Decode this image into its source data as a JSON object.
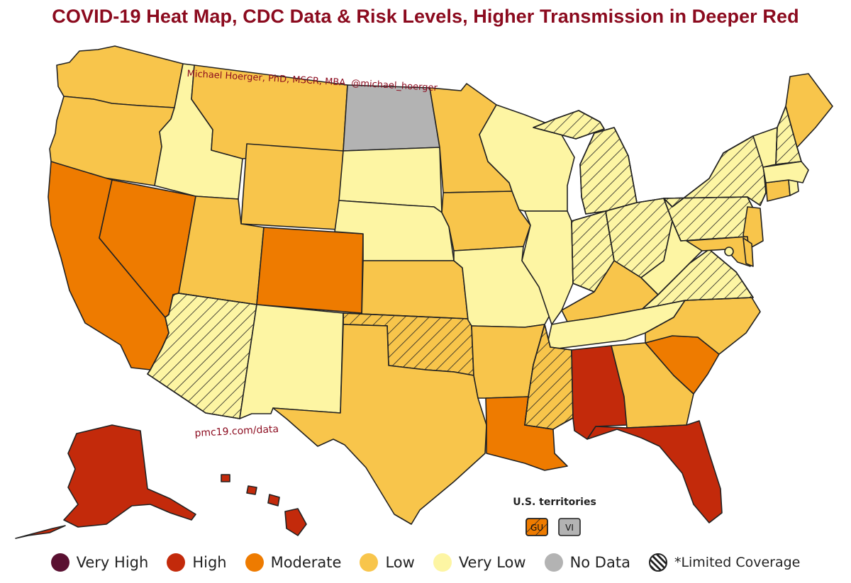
{
  "title": "COVID-19 Heat Map, CDC Data & Risk Levels, Higher Transmission in Deeper Red",
  "credit": "Michael Hoerger, PhD, MSCR, MBA  @michael_hoerger",
  "source_url": "pmc19.com/data",
  "colors": {
    "very_high": "#5a1031",
    "high": "#c32a0b",
    "moderate": "#ee7b00",
    "low": "#f8c54b",
    "very_low": "#fdf5a3",
    "no_data": "#b3b3b3",
    "title": "#8b0a1e"
  },
  "legend": [
    {
      "label": "Very High",
      "level": "very_high"
    },
    {
      "label": "High",
      "level": "high"
    },
    {
      "label": "Moderate",
      "level": "moderate"
    },
    {
      "label": "Low",
      "level": "low"
    },
    {
      "label": "Very Low",
      "level": "very_low"
    },
    {
      "label": "No Data",
      "level": "no_data"
    },
    {
      "label": "*Limited Coverage",
      "level": "limited"
    }
  ],
  "territories": {
    "title": "U.S. territories",
    "items": [
      {
        "code": "GU",
        "level": "moderate",
        "limited": true
      },
      {
        "code": "VI",
        "level": "no_data",
        "limited": false
      }
    ]
  },
  "states": [
    {
      "abbr": "WA",
      "level": "low",
      "limited": false
    },
    {
      "abbr": "OR",
      "level": "low",
      "limited": false
    },
    {
      "abbr": "CA",
      "level": "moderate",
      "limited": false
    },
    {
      "abbr": "NV",
      "level": "moderate",
      "limited": false
    },
    {
      "abbr": "ID",
      "level": "very_low",
      "limited": false
    },
    {
      "abbr": "MT",
      "level": "low",
      "limited": false
    },
    {
      "abbr": "WY",
      "level": "low",
      "limited": false
    },
    {
      "abbr": "UT",
      "level": "low",
      "limited": false
    },
    {
      "abbr": "AZ",
      "level": "very_low",
      "limited": true
    },
    {
      "abbr": "CO",
      "level": "moderate",
      "limited": false
    },
    {
      "abbr": "NM",
      "level": "very_low",
      "limited": false
    },
    {
      "abbr": "ND",
      "level": "no_data",
      "limited": false
    },
    {
      "abbr": "SD",
      "level": "very_low",
      "limited": false
    },
    {
      "abbr": "NE",
      "level": "very_low",
      "limited": false
    },
    {
      "abbr": "KS",
      "level": "low",
      "limited": false
    },
    {
      "abbr": "OK",
      "level": "low",
      "limited": true
    },
    {
      "abbr": "TX",
      "level": "low",
      "limited": false
    },
    {
      "abbr": "MN",
      "level": "low",
      "limited": false
    },
    {
      "abbr": "IA",
      "level": "low",
      "limited": false
    },
    {
      "abbr": "MO",
      "level": "very_low",
      "limited": false
    },
    {
      "abbr": "AR",
      "level": "low",
      "limited": false
    },
    {
      "abbr": "LA",
      "level": "moderate",
      "limited": false
    },
    {
      "abbr": "WI",
      "level": "very_low",
      "limited": false
    },
    {
      "abbr": "IL",
      "level": "very_low",
      "limited": false
    },
    {
      "abbr": "MI",
      "level": "very_low",
      "limited": true
    },
    {
      "abbr": "IN",
      "level": "very_low",
      "limited": true
    },
    {
      "abbr": "OH",
      "level": "very_low",
      "limited": true
    },
    {
      "abbr": "KY",
      "level": "low",
      "limited": false
    },
    {
      "abbr": "TN",
      "level": "very_low",
      "limited": false
    },
    {
      "abbr": "MS",
      "level": "low",
      "limited": true
    },
    {
      "abbr": "AL",
      "level": "high",
      "limited": false
    },
    {
      "abbr": "GA",
      "level": "low",
      "limited": false
    },
    {
      "abbr": "FL",
      "level": "high",
      "limited": false
    },
    {
      "abbr": "SC",
      "level": "moderate",
      "limited": false
    },
    {
      "abbr": "NC",
      "level": "low",
      "limited": false
    },
    {
      "abbr": "VA",
      "level": "very_low",
      "limited": true
    },
    {
      "abbr": "WV",
      "level": "very_low",
      "limited": false
    },
    {
      "abbr": "PA",
      "level": "very_low",
      "limited": true
    },
    {
      "abbr": "NY",
      "level": "very_low",
      "limited": true
    },
    {
      "abbr": "NJ",
      "level": "low",
      "limited": false
    },
    {
      "abbr": "DE",
      "level": "low",
      "limited": false
    },
    {
      "abbr": "MD",
      "level": "low",
      "limited": false
    },
    {
      "abbr": "DC",
      "level": "very_low",
      "limited": false
    },
    {
      "abbr": "CT",
      "level": "low",
      "limited": false
    },
    {
      "abbr": "RI",
      "level": "very_low",
      "limited": false
    },
    {
      "abbr": "MA",
      "level": "very_low",
      "limited": false
    },
    {
      "abbr": "VT",
      "level": "very_low",
      "limited": false
    },
    {
      "abbr": "NH",
      "level": "very_low",
      "limited": true
    },
    {
      "abbr": "ME",
      "level": "low",
      "limited": false
    },
    {
      "abbr": "AK",
      "level": "high",
      "limited": false
    },
    {
      "abbr": "HI",
      "level": "high",
      "limited": false
    }
  ]
}
